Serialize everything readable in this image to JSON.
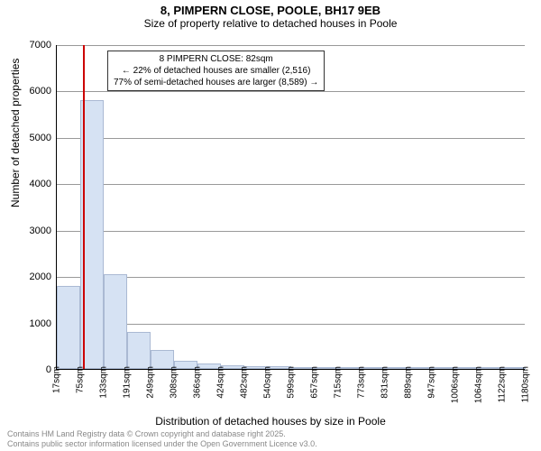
{
  "titles": {
    "line1": "8, PIMPERN CLOSE, POOLE, BH17 9EB",
    "line2": "Size of property relative to detached houses in Poole"
  },
  "axes": {
    "ylabel": "Number of detached properties",
    "xlabel": "Distribution of detached houses by size in Poole",
    "ymax": 7000,
    "ytick_step": 1000,
    "ytick_values": [
      0,
      1000,
      2000,
      3000,
      4000,
      5000,
      6000,
      7000
    ],
    "xtick_labels": [
      "17sqm",
      "75sqm",
      "133sqm",
      "191sqm",
      "249sqm",
      "308sqm",
      "366sqm",
      "424sqm",
      "482sqm",
      "540sqm",
      "599sqm",
      "657sqm",
      "715sqm",
      "773sqm",
      "831sqm",
      "889sqm",
      "947sqm",
      "1006sqm",
      "1064sqm",
      "1122sqm",
      "1180sqm"
    ],
    "grid_color": "#999999"
  },
  "bars": {
    "type": "histogram",
    "fill_color": "#d6e2f3",
    "border_color": "#aab9d3",
    "values": [
      1780,
      5790,
      2050,
      790,
      400,
      180,
      115,
      80,
      60,
      50,
      30,
      20,
      15,
      10,
      8,
      6,
      5,
      4,
      3,
      2
    ]
  },
  "marker": {
    "bin_index": 1,
    "fraction_in_bin": 0.12,
    "color": "#cc0000"
  },
  "annotation": {
    "line1": "8 PIMPERN CLOSE: 82sqm",
    "line2": "← 22% of detached houses are smaller (2,516)",
    "line3": "77% of semi-detached houses are larger (8,589) →"
  },
  "footer": {
    "line1": "Contains HM Land Registry data © Crown copyright and database right 2025.",
    "line2": "Contains public sector information licensed under the Open Government Licence v3.0."
  },
  "styling": {
    "background_color": "#ffffff",
    "title_fontsize": 13,
    "subtitle_fontsize": 12,
    "axis_label_fontsize": 12,
    "tick_fontsize": 11,
    "xtick_fontsize": 10,
    "annotation_fontsize": 10,
    "footer_fontsize": 9,
    "footer_color": "#888888"
  }
}
